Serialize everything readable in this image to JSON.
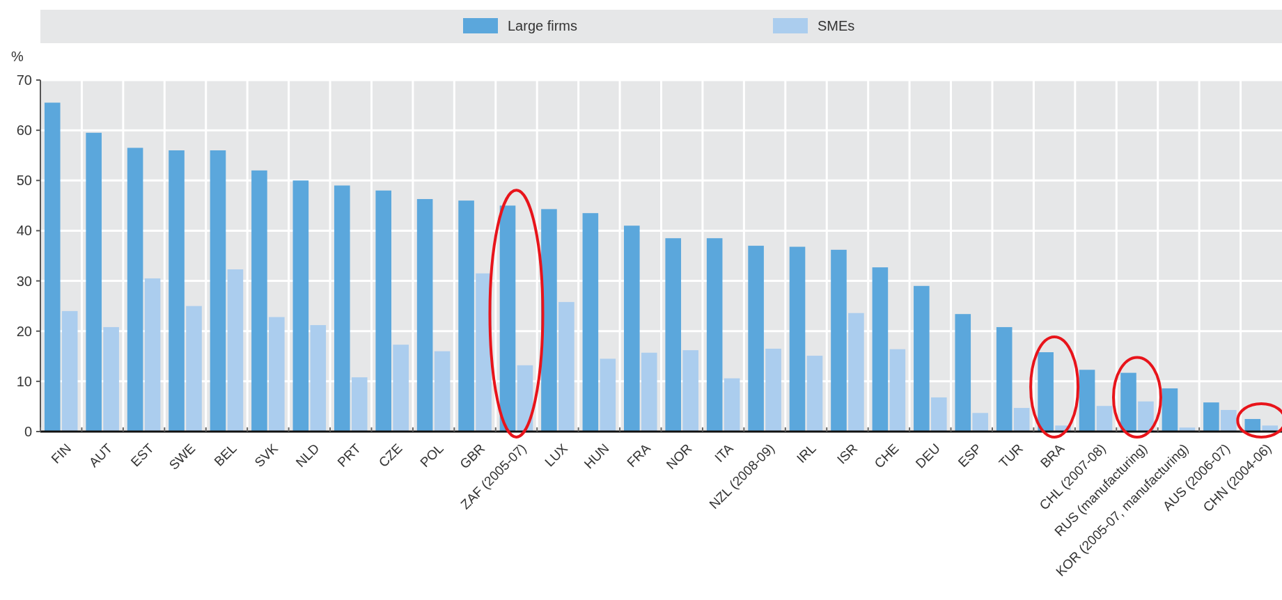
{
  "chart_data": {
    "type": "bar",
    "ylabel": "%",
    "categories": [
      "FIN",
      "AUT",
      "EST",
      "SWE",
      "BEL",
      "SVK",
      "NLD",
      "PRT",
      "CZE",
      "POL",
      "GBR",
      "ZAF (2005-07)",
      "LUX",
      "HUN",
      "FRA",
      "NOR",
      "ITA",
      "NZL (2008-09)",
      "IRL",
      "ISR",
      "CHE",
      "DEU",
      "ESP",
      "TUR",
      "BRA",
      "CHL (2007-08)",
      "RUS (manufacturing)",
      "KOR (2005-07, manufacturing)",
      "AUS (2006-07)",
      "CHN (2004-06)"
    ],
    "series": [
      {
        "name": "Large firms",
        "color": "#5ba7dc",
        "values": [
          65.5,
          59.5,
          56.5,
          56,
          56,
          52,
          50,
          49,
          48,
          46.3,
          46,
          45,
          44.3,
          43.5,
          41,
          38.5,
          38.5,
          37,
          36.8,
          36.2,
          32.7,
          29,
          23.4,
          20.8,
          15.8,
          12.3,
          11.7,
          8.6,
          5.8,
          2.5
        ]
      },
      {
        "name": "SMEs",
        "color": "#abcdee",
        "values": [
          24,
          20.8,
          30.5,
          25,
          32.3,
          22.8,
          21.2,
          10.8,
          17.3,
          16,
          31.5,
          13.2,
          25.8,
          14.5,
          15.7,
          16.2,
          10.6,
          16.5,
          15.1,
          23.6,
          16.4,
          6.8,
          3.7,
          4.7,
          1.2,
          5.1,
          6,
          0.8,
          4.3,
          1.2
        ]
      }
    ],
    "ylim": [
      0,
      70
    ],
    "yticks": [
      0,
      10,
      20,
      30,
      40,
      50,
      60,
      70
    ],
    "grid": true,
    "legend": "top"
  }
}
